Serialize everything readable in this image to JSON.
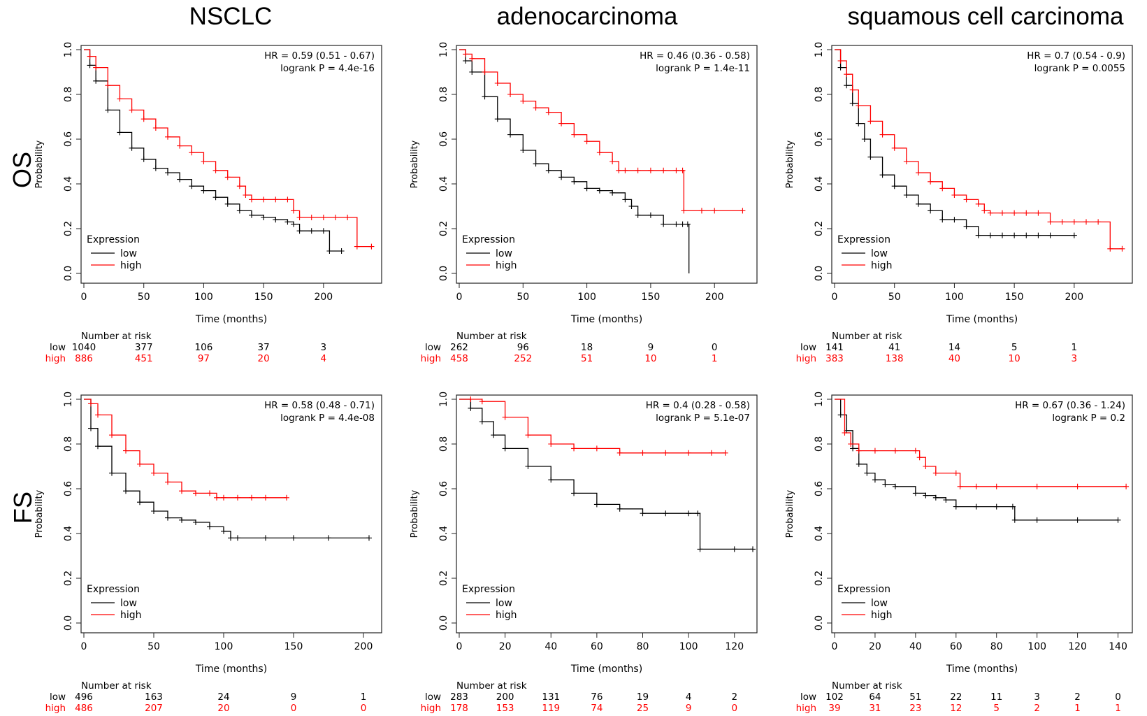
{
  "column_titles": [
    "NSCLC",
    "adenocarcinoma",
    "squamous cell carcinoma"
  ],
  "row_labels": [
    "OS",
    "FS"
  ],
  "colors": {
    "low": "#000000",
    "high": "#ff0000",
    "axis": "#222222"
  },
  "chart_data": [
    {
      "type": "line",
      "row": "OS",
      "column": "NSCLC",
      "hr_text": "HR = 0.59 (0.51 - 0.67)",
      "p_text": "logrank P = 4.4e-16",
      "xlabel": "Time (months)",
      "ylabel": "Probability",
      "xlim": [
        0,
        245
      ],
      "ylim": [
        0,
        1
      ],
      "xticks": [
        0,
        50,
        100,
        150,
        200
      ],
      "yticks": [
        0.0,
        0.2,
        0.4,
        0.6,
        0.8,
        1.0
      ],
      "legend_title": "Expression",
      "legend_position": "bottom-left",
      "series": [
        {
          "name": "low",
          "x": [
            0,
            5,
            10,
            20,
            30,
            40,
            50,
            60,
            70,
            80,
            90,
            100,
            110,
            120,
            130,
            140,
            150,
            160,
            170,
            175,
            180,
            190,
            200,
            205,
            215
          ],
          "y": [
            1,
            0.93,
            0.86,
            0.73,
            0.63,
            0.56,
            0.51,
            0.47,
            0.45,
            0.42,
            0.39,
            0.37,
            0.34,
            0.31,
            0.28,
            0.26,
            0.25,
            0.24,
            0.23,
            0.22,
            0.19,
            0.19,
            0.19,
            0.1,
            0.1
          ]
        },
        {
          "name": "high",
          "x": [
            0,
            5,
            10,
            20,
            30,
            40,
            50,
            60,
            70,
            80,
            90,
            100,
            110,
            120,
            130,
            135,
            140,
            150,
            160,
            170,
            175,
            180,
            190,
            200,
            210,
            220,
            228,
            240
          ],
          "y": [
            1,
            0.97,
            0.92,
            0.84,
            0.78,
            0.73,
            0.69,
            0.65,
            0.61,
            0.57,
            0.54,
            0.5,
            0.46,
            0.43,
            0.39,
            0.35,
            0.33,
            0.33,
            0.33,
            0.33,
            0.28,
            0.25,
            0.25,
            0.25,
            0.25,
            0.25,
            0.12,
            0.12
          ]
        }
      ],
      "risk_table": {
        "title": "Number at risk",
        "times": [
          0,
          50,
          100,
          150,
          200
        ],
        "low": [
          "1040",
          "377",
          "106",
          "37",
          "3"
        ],
        "high": [
          "886",
          "451",
          "97",
          "20",
          "4"
        ]
      }
    },
    {
      "type": "line",
      "row": "OS",
      "column": "adenocarcinoma",
      "hr_text": "HR = 0.46 (0.36 - 0.58)",
      "p_text": "logrank P = 1.4e-11",
      "xlabel": "Time (months)",
      "ylabel": "Probability",
      "xlim": [
        0,
        230
      ],
      "ylim": [
        0,
        1
      ],
      "xticks": [
        0,
        50,
        100,
        150,
        200
      ],
      "yticks": [
        0.0,
        0.2,
        0.4,
        0.6,
        0.8,
        1.0
      ],
      "legend_title": "Expression",
      "legend_position": "bottom-left",
      "series": [
        {
          "name": "low",
          "x": [
            0,
            5,
            10,
            20,
            30,
            40,
            50,
            60,
            70,
            80,
            90,
            100,
            110,
            120,
            130,
            135,
            140,
            150,
            160,
            170,
            175,
            179,
            180
          ],
          "y": [
            1,
            0.95,
            0.9,
            0.79,
            0.69,
            0.62,
            0.55,
            0.49,
            0.46,
            0.43,
            0.41,
            0.38,
            0.37,
            0.36,
            0.33,
            0.3,
            0.26,
            0.26,
            0.22,
            0.22,
            0.22,
            0.22,
            0.0
          ]
        },
        {
          "name": "high",
          "x": [
            0,
            5,
            10,
            20,
            30,
            40,
            50,
            60,
            70,
            80,
            90,
            100,
            110,
            120,
            125,
            130,
            140,
            150,
            160,
            170,
            175,
            176,
            190,
            200,
            222
          ],
          "y": [
            1,
            0.98,
            0.96,
            0.9,
            0.85,
            0.8,
            0.77,
            0.74,
            0.72,
            0.67,
            0.62,
            0.59,
            0.54,
            0.5,
            0.46,
            0.46,
            0.46,
            0.46,
            0.46,
            0.46,
            0.46,
            0.28,
            0.28,
            0.28,
            0.28
          ]
        }
      ],
      "risk_table": {
        "title": "Number at risk",
        "times": [
          0,
          50,
          100,
          150,
          200
        ],
        "low": [
          "262",
          "96",
          "18",
          "9",
          "0"
        ],
        "high": [
          "458",
          "252",
          "51",
          "10",
          "1"
        ]
      }
    },
    {
      "type": "line",
      "row": "OS",
      "column": "squamous cell carcinoma",
      "hr_text": "HR = 0.7 (0.54 - 0.9)",
      "p_text": "logrank P = 0.0055",
      "xlabel": "Time (months)",
      "ylabel": "Probability",
      "xlim": [
        0,
        245
      ],
      "ylim": [
        0,
        1
      ],
      "xticks": [
        0,
        50,
        100,
        150,
        200
      ],
      "yticks": [
        0.0,
        0.2,
        0.4,
        0.6,
        0.8,
        1.0
      ],
      "legend_title": "Expression",
      "legend_position": "bottom-left",
      "series": [
        {
          "name": "low",
          "x": [
            0,
            5,
            10,
            15,
            20,
            25,
            30,
            40,
            50,
            60,
            70,
            80,
            90,
            100,
            110,
            120,
            130,
            140,
            150,
            160,
            170,
            180,
            200
          ],
          "y": [
            1,
            0.92,
            0.84,
            0.76,
            0.67,
            0.6,
            0.52,
            0.44,
            0.39,
            0.35,
            0.31,
            0.28,
            0.24,
            0.24,
            0.21,
            0.17,
            0.17,
            0.17,
            0.17,
            0.17,
            0.17,
            0.17,
            0.17
          ]
        },
        {
          "name": "high",
          "x": [
            0,
            5,
            10,
            15,
            20,
            30,
            40,
            50,
            60,
            70,
            80,
            90,
            100,
            110,
            120,
            125,
            130,
            140,
            150,
            160,
            170,
            180,
            190,
            200,
            210,
            220,
            230,
            240
          ],
          "y": [
            1,
            0.95,
            0.89,
            0.82,
            0.75,
            0.68,
            0.62,
            0.56,
            0.5,
            0.45,
            0.41,
            0.38,
            0.35,
            0.33,
            0.31,
            0.28,
            0.27,
            0.27,
            0.27,
            0.27,
            0.27,
            0.23,
            0.23,
            0.23,
            0.23,
            0.23,
            0.11,
            0.11
          ]
        }
      ],
      "risk_table": {
        "title": "Number at risk",
        "times": [
          0,
          50,
          100,
          150,
          200
        ],
        "low": [
          "141",
          "41",
          "14",
          "5",
          "1"
        ],
        "high": [
          "383",
          "138",
          "40",
          "10",
          "3"
        ]
      }
    },
    {
      "type": "line",
      "row": "FS",
      "column": "NSCLC",
      "hr_text": "HR = 0.58 (0.48 - 0.71)",
      "p_text": "logrank P = 4.4e-08",
      "xlabel": "Time (months)",
      "ylabel": "Probability",
      "xlim": [
        0,
        210
      ],
      "ylim": [
        0,
        1
      ],
      "xticks": [
        0,
        50,
        100,
        150,
        200
      ],
      "yticks": [
        0.0,
        0.2,
        0.4,
        0.6,
        0.8,
        1.0
      ],
      "legend_title": "Expression",
      "legend_position": "bottom-left",
      "series": [
        {
          "name": "low",
          "x": [
            0,
            5,
            10,
            20,
            30,
            40,
            50,
            60,
            70,
            80,
            90,
            100,
            105,
            110,
            130,
            150,
            175,
            204
          ],
          "y": [
            1,
            0.87,
            0.79,
            0.67,
            0.59,
            0.54,
            0.5,
            0.47,
            0.46,
            0.45,
            0.43,
            0.41,
            0.38,
            0.38,
            0.38,
            0.38,
            0.38,
            0.38
          ]
        },
        {
          "name": "high",
          "x": [
            0,
            5,
            10,
            20,
            30,
            40,
            50,
            60,
            70,
            80,
            90,
            95,
            100,
            110,
            120,
            130,
            145
          ],
          "y": [
            1,
            0.98,
            0.93,
            0.84,
            0.77,
            0.71,
            0.67,
            0.63,
            0.59,
            0.58,
            0.58,
            0.56,
            0.56,
            0.56,
            0.56,
            0.56,
            0.56
          ]
        }
      ],
      "risk_table": {
        "title": "Number at risk",
        "times": [
          0,
          50,
          100,
          150,
          200
        ],
        "low": [
          "496",
          "163",
          "24",
          "9",
          "1"
        ],
        "high": [
          "486",
          "207",
          "20",
          "0",
          "0"
        ]
      }
    },
    {
      "type": "line",
      "row": "FS",
      "column": "adenocarcinoma",
      "hr_text": "HR = 0.4 (0.28 - 0.58)",
      "p_text": "logrank P = 5.1e-07",
      "xlabel": "Time (months)",
      "ylabel": "Probability",
      "xlim": [
        0,
        128
      ],
      "ylim": [
        0,
        1
      ],
      "xticks": [
        0,
        20,
        40,
        60,
        80,
        100,
        120
      ],
      "yticks": [
        0.0,
        0.2,
        0.4,
        0.6,
        0.8,
        1.0
      ],
      "legend_title": "Expression",
      "legend_position": "bottom-left",
      "series": [
        {
          "name": "low",
          "x": [
            0,
            5,
            10,
            15,
            20,
            30,
            40,
            50,
            60,
            70,
            80,
            90,
            100,
            104,
            105,
            120,
            128
          ],
          "y": [
            1,
            0.96,
            0.9,
            0.84,
            0.78,
            0.7,
            0.64,
            0.58,
            0.53,
            0.51,
            0.49,
            0.49,
            0.49,
            0.49,
            0.33,
            0.33,
            0.33
          ]
        },
        {
          "name": "high",
          "x": [
            0,
            5,
            10,
            20,
            30,
            40,
            50,
            60,
            70,
            80,
            90,
            100,
            110,
            116
          ],
          "y": [
            1,
            1,
            0.99,
            0.92,
            0.84,
            0.8,
            0.78,
            0.78,
            0.76,
            0.76,
            0.76,
            0.76,
            0.76,
            0.76
          ]
        }
      ],
      "risk_table": {
        "title": "Number at risk",
        "times": [
          0,
          20,
          40,
          60,
          80,
          100,
          120
        ],
        "low": [
          "283",
          "200",
          "131",
          "76",
          "19",
          "4",
          "2"
        ],
        "high": [
          "178",
          "153",
          "119",
          "74",
          "25",
          "9",
          "0"
        ]
      }
    },
    {
      "type": "line",
      "row": "FS",
      "column": "squamous cell carcinoma",
      "hr_text": "HR = 0.67 (0.36 - 1.24)",
      "p_text": "logrank P = 0.2",
      "xlabel": "Time (months)",
      "ylabel": "Probability",
      "xlim": [
        0,
        145
      ],
      "ylim": [
        0,
        1
      ],
      "xticks": [
        0,
        20,
        40,
        60,
        80,
        100,
        120,
        140
      ],
      "yticks": [
        0.0,
        0.2,
        0.4,
        0.6,
        0.8,
        1.0
      ],
      "legend_title": "Expression",
      "legend_position": "bottom-left",
      "series": [
        {
          "name": "low",
          "x": [
            0,
            3,
            6,
            9,
            12,
            16,
            20,
            25,
            30,
            40,
            45,
            50,
            55,
            60,
            70,
            80,
            88,
            89,
            100,
            120,
            140
          ],
          "y": [
            1,
            0.93,
            0.86,
            0.78,
            0.71,
            0.67,
            0.64,
            0.62,
            0.61,
            0.58,
            0.57,
            0.56,
            0.55,
            0.52,
            0.52,
            0.52,
            0.52,
            0.46,
            0.46,
            0.46,
            0.46
          ]
        },
        {
          "name": "high",
          "x": [
            0,
            5,
            8,
            12,
            20,
            30,
            40,
            42,
            45,
            50,
            60,
            62,
            70,
            80,
            100,
            120,
            144
          ],
          "y": [
            1,
            0.85,
            0.8,
            0.77,
            0.77,
            0.77,
            0.77,
            0.74,
            0.7,
            0.67,
            0.67,
            0.61,
            0.61,
            0.61,
            0.61,
            0.61,
            0.61
          ]
        }
      ],
      "risk_table": {
        "title": "Number at risk",
        "times": [
          0,
          20,
          40,
          60,
          80,
          100,
          120,
          140
        ],
        "low": [
          "102",
          "64",
          "51",
          "22",
          "11",
          "3",
          "2",
          "0"
        ],
        "high": [
          "39",
          "31",
          "23",
          "12",
          "5",
          "2",
          "1",
          "1"
        ]
      }
    }
  ]
}
